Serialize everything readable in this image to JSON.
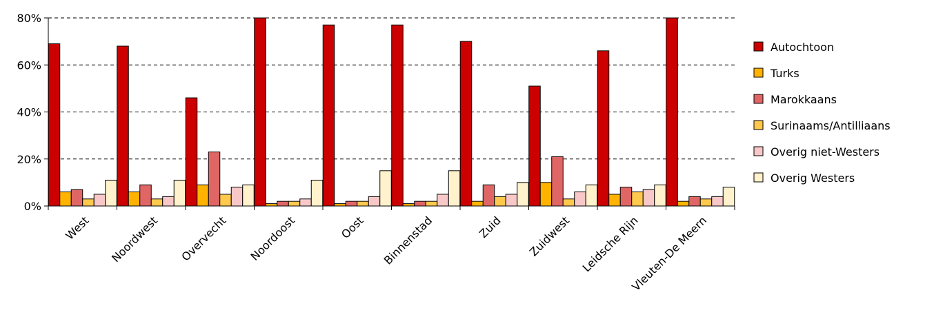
{
  "chart_data": {
    "type": "bar",
    "categories": [
      "West",
      "Noordwest",
      "Overvecht",
      "Noordoost",
      "Oost",
      "Binnenstad",
      "Zuid",
      "Zuidwest",
      "Leidsche Rijn",
      "Vleuten-De Meern"
    ],
    "series": [
      {
        "name": "Autochtoon",
        "color": "#CC0000",
        "values": [
          69,
          68,
          46,
          80,
          77,
          77,
          70,
          51,
          66,
          80
        ]
      },
      {
        "name": "Turks",
        "color": "#FFB300",
        "values": [
          6,
          6,
          9,
          1,
          1,
          1,
          2,
          10,
          5,
          2
        ]
      },
      {
        "name": "Marokkaans",
        "color": "#E06666",
        "values": [
          7,
          9,
          23,
          2,
          2,
          2,
          9,
          21,
          8,
          4
        ]
      },
      {
        "name": "Surinaams/Antilliaans",
        "color": "#FFC94D",
        "values": [
          3,
          3,
          5,
          2,
          2,
          2,
          4,
          3,
          6,
          3
        ]
      },
      {
        "name": "Overig niet-Westers",
        "color": "#F8C8C8",
        "values": [
          5,
          4,
          8,
          3,
          4,
          5,
          5,
          6,
          7,
          4
        ]
      },
      {
        "name": "Overig Westers",
        "color": "#FFF2CC",
        "values": [
          11,
          11,
          9,
          11,
          15,
          15,
          10,
          9,
          9,
          8
        ]
      }
    ],
    "yticks": [
      "0%",
      "20%",
      "40%",
      "60%",
      "80%"
    ],
    "ylim": [
      0,
      80
    ],
    "grid": true,
    "legend": "right"
  }
}
